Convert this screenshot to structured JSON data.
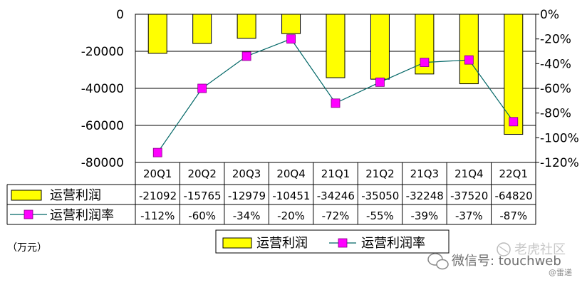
{
  "chart_data": {
    "type": "bar+line",
    "categories": [
      "20Q1",
      "20Q2",
      "20Q3",
      "20Q4",
      "21Q1",
      "21Q2",
      "21Q3",
      "21Q4",
      "22Q1"
    ],
    "series": [
      {
        "name": "运营利润",
        "type": "bar",
        "axis": "left",
        "color": "#ffff00",
        "values": [
          -21092,
          -15765,
          -12979,
          -10451,
          -34246,
          -35050,
          -32248,
          -37520,
          -64820
        ],
        "labels": [
          "-21092",
          "-15765",
          "-12979",
          "-10451",
          "-34246",
          "-35050",
          "-32248",
          "-37520",
          "-64820"
        ]
      },
      {
        "name": "运营利润率",
        "type": "line",
        "axis": "right",
        "color": "#ff00ff",
        "line_color": "#006666",
        "values": [
          -112,
          -60,
          -34,
          -20,
          -72,
          -55,
          -39,
          -37,
          -87
        ],
        "labels": [
          "-112%",
          "-60%",
          "-34%",
          "-20%",
          "-72%",
          "-55%",
          "-39%",
          "-37%",
          "-87%"
        ]
      }
    ],
    "y_left": {
      "min": -80000,
      "max": 0,
      "ticks": [
        "0",
        "-20000",
        "-40000",
        "-60000",
        "-80000"
      ]
    },
    "y_right": {
      "min": -120,
      "max": 0,
      "ticks": [
        "0%",
        "-20%",
        "-40%",
        "-60%",
        "-80%",
        "-100%",
        "-120%"
      ]
    },
    "grid": true,
    "data_table": true,
    "legend": {
      "position": "bottom-center",
      "items": [
        "运营利润",
        "运营利润率"
      ]
    },
    "unit_label": "（万元）"
  },
  "watermark": {
    "text": "微信号: touchweb",
    "brand": "老虎社区",
    "small": "@雷递"
  }
}
